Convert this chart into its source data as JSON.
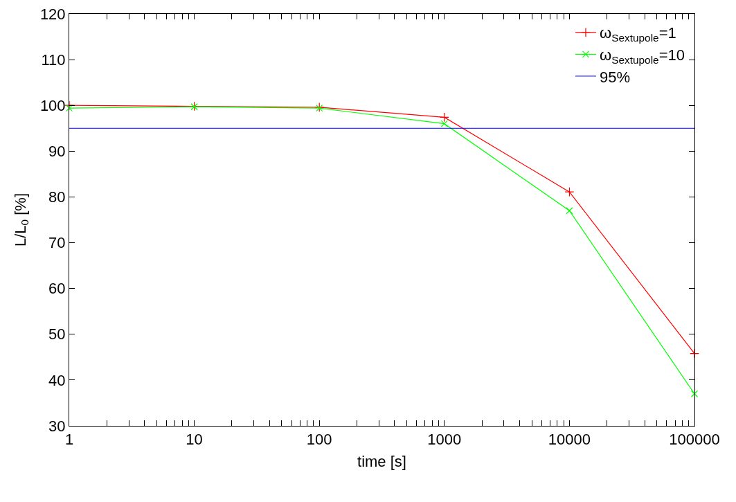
{
  "chart_data": {
    "type": "line",
    "xlabel": "time [s]",
    "ylabel": "L/L$_{0}$ [%]",
    "x": [
      1,
      10,
      100,
      1000,
      10000,
      100000
    ],
    "series": [
      {
        "name": "ω$_{Sextupole}$=1",
        "color": "#ff0000",
        "marker": "cross",
        "values": [
          100,
          99.8,
          99.6,
          97.4,
          81.1,
          45.8
        ]
      },
      {
        "name": "ω$_{Sextupole}$=10",
        "color": "#00ff00",
        "marker": "x",
        "values": [
          99.4,
          99.7,
          99.4,
          96.0,
          77.0,
          37.0
        ]
      }
    ],
    "ref_lines": [
      {
        "axis": "y",
        "value": 95,
        "label": "95%",
        "color": "#0000ff"
      }
    ],
    "log": "x",
    "xlim": [
      1,
      100000
    ],
    "xticks": [
      1,
      {
        "value": 2,
        "label": null
      },
      {
        "value": 3,
        "label": null
      },
      {
        "value": 4,
        "label": null
      },
      {
        "value": 5,
        "label": null
      },
      {
        "value": 6,
        "label": null
      },
      {
        "value": 7,
        "label": null
      },
      {
        "value": 8,
        "label": null
      },
      {
        "value": 9,
        "label": null
      },
      10,
      {
        "value": 20,
        "label": null
      },
      {
        "value": 30,
        "label": null
      },
      {
        "value": 40,
        "label": null
      },
      {
        "value": 50,
        "label": null
      },
      {
        "value": 60,
        "label": null
      },
      {
        "value": 70,
        "label": null
      },
      {
        "value": 80,
        "label": null
      },
      {
        "value": 90,
        "label": null
      },
      100,
      {
        "value": 200,
        "label": null
      },
      {
        "value": 300,
        "label": null
      },
      {
        "value": 400,
        "label": null
      },
      {
        "value": 500,
        "label": null
      },
      {
        "value": 600,
        "label": null
      },
      {
        "value": 700,
        "label": null
      },
      {
        "value": 800,
        "label": null
      },
      {
        "value": 900,
        "label": null
      },
      1000,
      {
        "value": 2000,
        "label": null
      },
      {
        "value": 3000,
        "label": null
      },
      {
        "value": 4000,
        "label": null
      },
      {
        "value": 5000,
        "label": null
      },
      {
        "value": 6000,
        "label": null
      },
      {
        "value": 7000,
        "label": null
      },
      {
        "value": 8000,
        "label": null
      },
      {
        "value": 9000,
        "label": null
      },
      10000,
      {
        "value": 20000,
        "label": null
      },
      {
        "value": 30000,
        "label": null
      },
      {
        "value": 40000,
        "label": null
      },
      {
        "value": 50000,
        "label": null
      },
      {
        "value": 60000,
        "label": null
      },
      {
        "value": 70000,
        "label": null
      },
      {
        "value": 80000,
        "label": null
      },
      {
        "value": 90000,
        "label": null
      },
      100000
    ],
    "ylim": [
      30,
      120
    ],
    "yticks": [
      30,
      40,
      50,
      60,
      70,
      80,
      90,
      100,
      110,
      120
    ],
    "grid": false,
    "legend": "top right",
    "line_style": "solid"
  }
}
